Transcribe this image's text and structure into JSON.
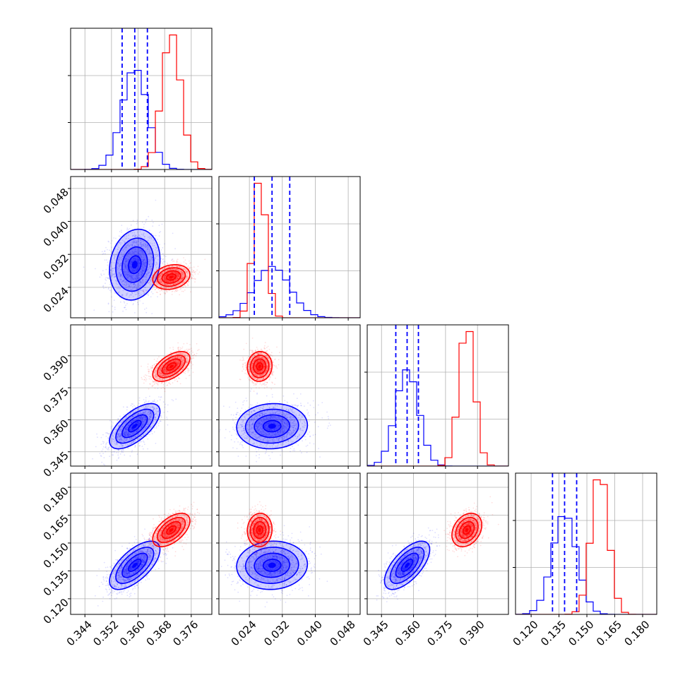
{
  "chart_data": {
    "type": "corner",
    "colors": {
      "blue": "#0000ff",
      "red": "#ff0000",
      "grid": "#b0b0b0"
    },
    "grid": true,
    "params": [
      {
        "id": "p0",
        "range": [
          0.3397,
          0.3822
        ],
        "ticks": [
          0.344,
          0.352,
          0.36,
          0.368,
          0.376
        ],
        "tick_labels": [
          "0.344",
          "0.352",
          "0.360",
          "0.368",
          "0.376"
        ]
      },
      {
        "id": "p1",
        "range": [
          0.0166,
          0.0509
        ],
        "ticks": [
          0.024,
          0.032,
          0.04,
          0.048
        ],
        "tick_labels": [
          "0.024",
          "0.032",
          "0.040",
          "0.048"
        ]
      },
      {
        "id": "p2",
        "range": [
          0.3383,
          0.4045
        ],
        "ticks": [
          0.345,
          0.36,
          0.375,
          0.39
        ],
        "tick_labels": [
          "0.345",
          "0.360",
          "0.375",
          "0.390"
        ]
      },
      {
        "id": "p3",
        "range": [
          0.1116,
          0.1876
        ],
        "ticks": [
          0.12,
          0.135,
          0.15,
          0.165,
          0.18
        ],
        "tick_labels": [
          "0.120",
          "0.135",
          "0.150",
          "0.165",
          "0.180"
        ]
      }
    ],
    "series": [
      {
        "color": "blue",
        "mean": [
          0.359,
          0.0295,
          0.357,
          0.138
        ],
        "sd": [
          0.0038,
          0.0043,
          0.0053,
          0.0065
        ],
        "corr": {
          "0-1": 0.15,
          "0-2": 0.65,
          "0-3": 0.65,
          "1-2": 0.05,
          "1-3": 0.05,
          "2-3": 0.65
        },
        "quantiles": [
          [
            0.3552,
            0.359,
            0.3628
          ],
          [
            0.0252,
            0.0295,
            0.0338
          ],
          [
            0.3517,
            0.357,
            0.3623
          ],
          [
            0.1315,
            0.138,
            0.1445
          ]
        ]
      },
      {
        "color": "red",
        "mean": [
          0.37,
          0.0265,
          0.385,
          0.157
        ],
        "sd": [
          0.0028,
          0.0015,
          0.0035,
          0.0045
        ],
        "corr": {
          "0-1": 0.2,
          "0-2": 0.55,
          "0-3": 0.55,
          "1-2": 0.05,
          "1-3": 0.05,
          "2-3": 0.3
        }
      }
    ],
    "quantile_lines_series": "blue",
    "contour_levels": [
      0.5,
      1.0,
      1.5,
      2.0
    ]
  }
}
